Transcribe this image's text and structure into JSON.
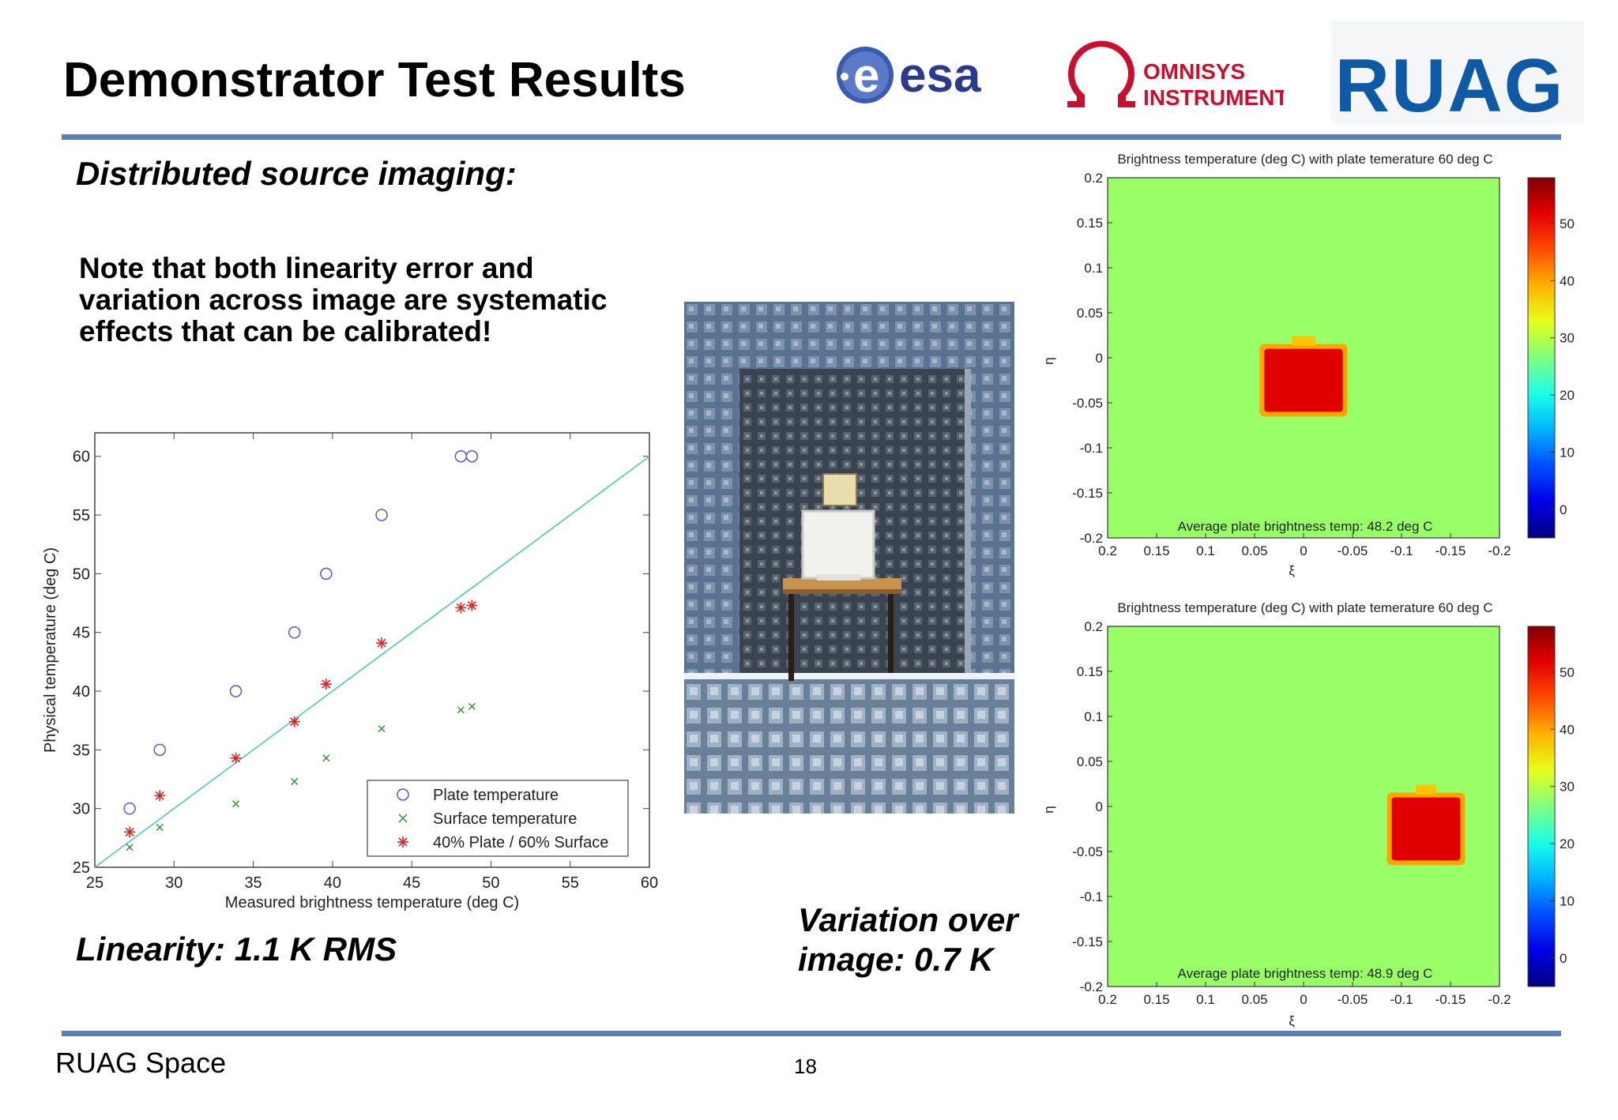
{
  "slide": {
    "title": "Demonstrator Test Results",
    "subtitle": "Distributed source imaging:",
    "note_lines": [
      "Note that both linearity error and",
      "variation across image are systematic",
      "effects that can be calibrated!"
    ],
    "linearity": "Linearity: 1.1 K RMS",
    "variation_lines": [
      "Variation over",
      "image: 0.7 K"
    ],
    "footer_left": "RUAG Space",
    "page_number": "18",
    "rule_color": "#5b7fb8"
  },
  "logos": {
    "esa": "esa",
    "omnisys_line1": "OMNISYS",
    "omnisys_line2": "INSTRUMENTS",
    "ruag": "RUAG",
    "esa_color": "#2b3a8c",
    "omnisys_color": "#c8102e",
    "ruag_color": "#0e5aa7"
  },
  "chart_data": [
    {
      "type": "scatter",
      "xlabel": "Measured brightness temperature (deg C)",
      "ylabel": "Physical temperature (deg C)",
      "xlim": [
        25,
        60
      ],
      "ylim": [
        25,
        62
      ],
      "xticks": [
        25,
        30,
        35,
        40,
        45,
        50,
        55,
        60
      ],
      "yticks": [
        25,
        30,
        35,
        40,
        45,
        50,
        55,
        60
      ],
      "legend_position": "bottom-right",
      "series": [
        {
          "name": "Plate temperature",
          "marker": "circle",
          "color": "#5555dd",
          "x": [
            27.2,
            29.1,
            33.9,
            37.6,
            39.6,
            43.1,
            48.1,
            48.8
          ],
          "y": [
            30,
            35,
            40,
            45,
            50,
            55,
            60,
            60
          ]
        },
        {
          "name": "Surface temperature",
          "marker": "x",
          "color": "#2e8b2e",
          "x": [
            27.2,
            29.1,
            33.9,
            37.6,
            39.6,
            43.1,
            48.1,
            48.8
          ],
          "y": [
            26.7,
            28.4,
            30.4,
            32.3,
            34.3,
            36.8,
            38.4,
            38.7
          ]
        },
        {
          "name": "40% Plate / 60% Surface",
          "marker": "star",
          "color": "#dd2222",
          "x": [
            27.2,
            29.1,
            33.9,
            37.6,
            39.6,
            43.1,
            48.1,
            48.8
          ],
          "y": [
            28,
            31.1,
            34.3,
            37.4,
            40.6,
            44.1,
            47.1,
            47.3
          ]
        }
      ],
      "fit_line": {
        "x": [
          25,
          60
        ],
        "y": [
          25,
          60
        ],
        "color": "#4fc9a6"
      }
    },
    {
      "type": "heatmap",
      "title": "Brightness temperature (deg C) with plate temerature 60 deg C",
      "xlabel": "ξ",
      "ylabel": "η",
      "xlim": [
        0.2,
        -0.2
      ],
      "ylim": [
        -0.2,
        0.2
      ],
      "xtick_labels": [
        "0.2",
        "0.15",
        "0.1",
        "0.05",
        "0",
        "-0.05",
        "-0.1",
        "-0.15",
        "-0.2"
      ],
      "ytick_labels": [
        "0.2",
        "0.15",
        "0.1",
        "0.05",
        "0",
        "-0.05",
        "-0.1",
        "-0.15",
        "-0.2"
      ],
      "colorbar_ticks": [
        "50",
        "40",
        "30",
        "20",
        "10",
        "0"
      ],
      "colorbar_range": [
        -5,
        58
      ],
      "background_value": 28,
      "hot_square": {
        "xi": [
          0.04,
          -0.04
        ],
        "eta": [
          -0.06,
          0.01
        ],
        "value": 52
      },
      "annotation": "Average plate brightness temp: 48.2 deg C"
    },
    {
      "type": "heatmap",
      "title": "Brightness temperature (deg C) with plate temerature 60 deg C",
      "xlabel": "ξ",
      "ylabel": "η",
      "xlim": [
        0.2,
        -0.2
      ],
      "ylim": [
        -0.2,
        0.2
      ],
      "xtick_labels": [
        "0.2",
        "0.15",
        "0.1",
        "0.05",
        "0",
        "-0.05",
        "-0.1",
        "-0.15",
        "-0.2"
      ],
      "ytick_labels": [
        "0.2",
        "0.15",
        "0.1",
        "0.05",
        "0",
        "-0.05",
        "-0.1",
        "-0.15",
        "-0.2"
      ],
      "colorbar_ticks": [
        "50",
        "40",
        "30",
        "20",
        "10",
        "0"
      ],
      "colorbar_range": [
        -5,
        58
      ],
      "background_value": 28,
      "hot_square": {
        "xi": [
          -0.09,
          -0.16
        ],
        "eta": [
          -0.06,
          0.01
        ],
        "value": 52
      },
      "annotation": "Average plate brightness temp: 48.9 deg C"
    }
  ]
}
